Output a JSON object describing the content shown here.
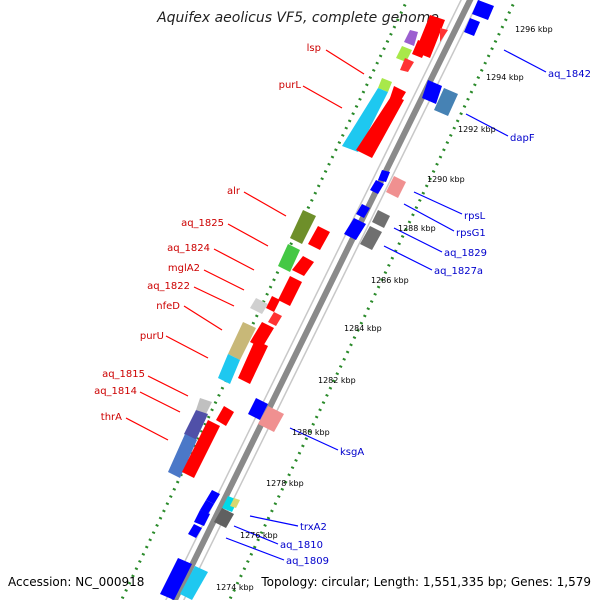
{
  "title": "Aquifex aeolicus VF5, complete genome",
  "footer": {
    "accession": "Accession: NC_000918",
    "topology": "Topology: circular; Length: 1,551,335 bp; Genes: 1,579"
  },
  "colors": {
    "forward_label": "#cc0000",
    "reverse_label": "#0000cc",
    "axis": "#808080",
    "tick": "#1f7a1f"
  },
  "kbp_ticks": [
    "1296 kbp",
    "1294 kbp",
    "1292 kbp",
    "1290 kbp",
    "1288 kbp",
    "1286 kbp",
    "1284 kbp",
    "1282 kbp",
    "1280 kbp",
    "1278 kbp",
    "1276 kbp",
    "1274 kbp"
  ],
  "forward_genes": [
    "lsp",
    "purL",
    "alr",
    "aq_1825",
    "aq_1824",
    "mglA2",
    "aq_1822",
    "nfeD",
    "purU",
    "aq_1815",
    "aq_1814",
    "thrA"
  ],
  "reverse_genes": [
    "aq_1842",
    "dapF",
    "rpsL",
    "rpsG1",
    "aq_1829",
    "aq_1827a",
    "ksgA",
    "trxA2",
    "aq_1810",
    "aq_1809"
  ]
}
